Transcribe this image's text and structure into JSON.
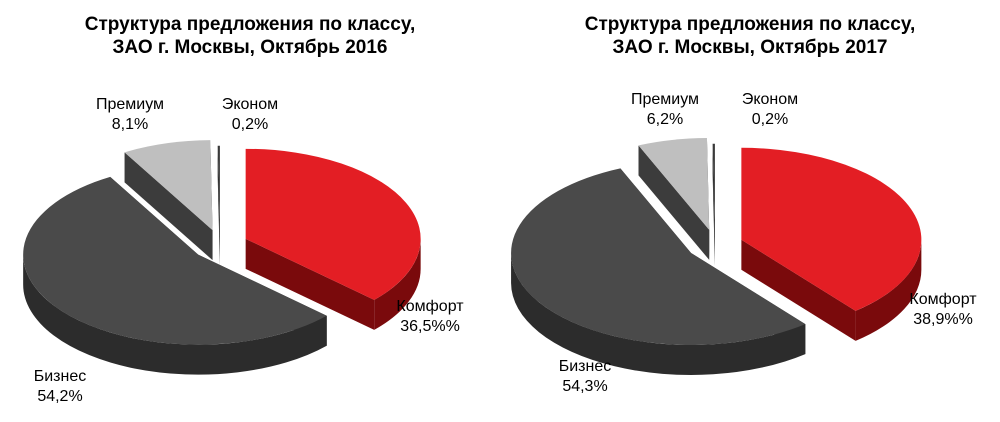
{
  "chart_data": [
    {
      "type": "pie",
      "title_line1": "Структура предложения по классу,",
      "title_line2": "ЗАО г. Москвы, Октябрь 2016",
      "slices": [
        {
          "name": "Комфорт",
          "value": 36.5,
          "label": "36,5%%",
          "color": "#e31e24",
          "side": "#7a0a0c"
        },
        {
          "name": "Бизнес",
          "value": 54.2,
          "label": "54,2%",
          "color": "#4a4a4a",
          "side": "#2c2c2c"
        },
        {
          "name": "Премиум",
          "value": 8.1,
          "label": "8,1%",
          "color": "#bfbfbf",
          "side": "#3c3c3c"
        },
        {
          "name": "Эконом",
          "value": 0.2,
          "label": "0,2%",
          "color": "#3a3a3a",
          "side": "#202020"
        }
      ]
    },
    {
      "type": "pie",
      "title_line1": "Структура предложения по классу,",
      "title_line2": "ЗАО г. Москвы, Октябрь 2017",
      "slices": [
        {
          "name": "Комфорт",
          "value": 38.9,
          "label": "38,9%%",
          "color": "#e31e24",
          "side": "#7a0a0c"
        },
        {
          "name": "Бизнес",
          "value": 54.3,
          "label": "54,3%",
          "color": "#4a4a4a",
          "side": "#2c2c2c"
        },
        {
          "name": "Премиум",
          "value": 6.2,
          "label": "6,2%",
          "color": "#bfbfbf",
          "side": "#3c3c3c"
        },
        {
          "name": "Эконом",
          "value": 0.2,
          "label": "0,2%",
          "color": "#3a3a3a",
          "side": "#202020"
        }
      ]
    }
  ]
}
